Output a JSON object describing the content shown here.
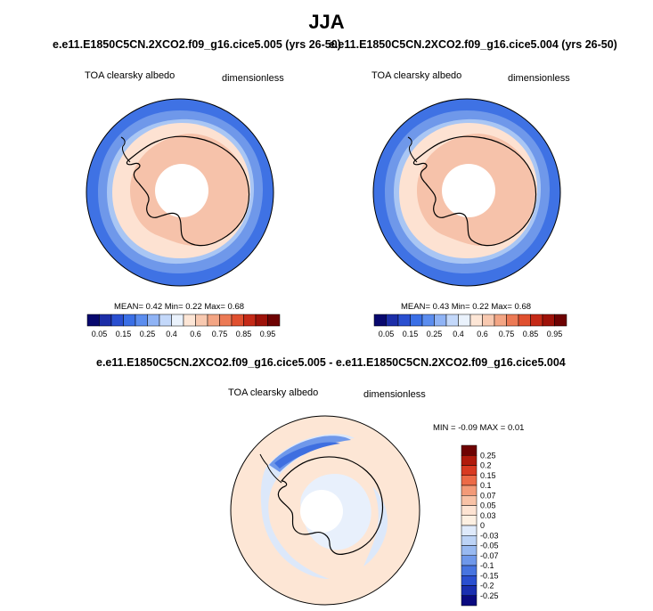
{
  "page_title": "JJA",
  "panel_left": {
    "case": "e.e11.E1850C5CN.2XCO2.f09_g16.cice5.005 (yrs 26-50)",
    "variable": "TOA clearsky albedo",
    "units": "dimensionless",
    "stats": "MEAN=   0.42  Min=   0.22  Max=   0.68"
  },
  "panel_right": {
    "case": "e.e11.E1850C5CN.2XCO2.f09_g16.cice5.004 (yrs 26-50)",
    "variable": "TOA clearsky albedo",
    "units": "dimensionless",
    "stats": "MEAN=   0.43  Min=   0.22  Max=   0.68"
  },
  "panel_diff": {
    "case": "e.e11.E1850C5CN.2XCO2.f09_g16.cice5.005 - e.e11.E1850C5CN.2XCO2.f09_g16.cice5.004",
    "variable": "TOA clearsky albedo",
    "units": "dimensionless",
    "stats": "MIN =  -0.09 MAX =   0.01"
  },
  "chart_data": [
    {
      "type": "heatmap",
      "title": "TOA clearsky albedo",
      "projection": "south polar stereographic",
      "units": "dimensionless",
      "mean": 0.42,
      "min": 0.22,
      "max": 0.68,
      "colorbar": {
        "labels": [
          "0.05",
          "0.15",
          "0.25",
          "0.4",
          "0.6",
          "0.75",
          "0.85",
          "0.95"
        ],
        "colors": [
          "#08086e",
          "#1c2ea8",
          "#2a4fd0",
          "#3a6fe6",
          "#5b8def",
          "#8fb3f5",
          "#c3d8fa",
          "#eaf2fc",
          "#fde6d6",
          "#f8c9b0",
          "#f3a584",
          "#ec7a55",
          "#e0502f",
          "#c52a17",
          "#9e1209",
          "#6e0202"
        ]
      }
    },
    {
      "type": "heatmap",
      "title": "TOA clearsky albedo",
      "projection": "south polar stereographic",
      "units": "dimensionless",
      "mean": 0.43,
      "min": 0.22,
      "max": 0.68,
      "colorbar": {
        "labels": [
          "0.05",
          "0.15",
          "0.25",
          "0.4",
          "0.6",
          "0.75",
          "0.85",
          "0.95"
        ],
        "colors": [
          "#08086e",
          "#1c2ea8",
          "#2a4fd0",
          "#3a6fe6",
          "#5b8def",
          "#8fb3f5",
          "#c3d8fa",
          "#eaf2fc",
          "#fde6d6",
          "#f8c9b0",
          "#f3a584",
          "#ec7a55",
          "#e0502f",
          "#c52a17",
          "#9e1209",
          "#6e0202"
        ]
      }
    },
    {
      "type": "heatmap",
      "title": "TOA clearsky albedo",
      "projection": "south polar stereographic",
      "units": "dimensionless",
      "min": -0.09,
      "max": 0.01,
      "colorbar": {
        "labels": [
          "0.25",
          "0.2",
          "0.15",
          "0.1",
          "0.07",
          "0.05",
          "0.03",
          "0",
          "-0.03",
          "-0.05",
          "-0.07",
          "-0.1",
          "-0.15",
          "-0.2",
          "-0.25"
        ],
        "colors": [
          "#6e0202",
          "#b01a0c",
          "#d83a22",
          "#ec6a47",
          "#f39a78",
          "#f8c2a6",
          "#fde3d2",
          "#fdf0e2",
          "#dfeafb",
          "#bcd3f6",
          "#98b9f1",
          "#6f98ea",
          "#4774e0",
          "#2a4fd0",
          "#1a2fb0",
          "#0a0a80"
        ]
      }
    }
  ],
  "colors": {
    "open_ocean": "#3f72e4",
    "mid_ring": "#6f98ea",
    "ice_edge": "#a9c6f4",
    "sea_ice": "#fde2d2",
    "continent": "#f6c2aa",
    "diff_bg": "#fde6d5",
    "diff_neg": "#dce8fa"
  }
}
